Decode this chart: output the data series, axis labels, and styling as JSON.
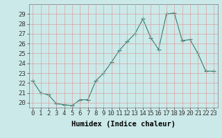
{
  "x": [
    0,
    1,
    2,
    3,
    4,
    5,
    6,
    7,
    8,
    9,
    10,
    11,
    12,
    13,
    14,
    15,
    16,
    17,
    18,
    19,
    20,
    21,
    22,
    23
  ],
  "y": [
    22.2,
    21.0,
    20.8,
    19.9,
    19.8,
    19.7,
    20.3,
    20.3,
    22.2,
    23.0,
    24.1,
    25.3,
    26.2,
    27.0,
    28.5,
    26.6,
    25.4,
    29.0,
    29.1,
    26.3,
    26.4,
    25.0,
    23.2,
    23.2
  ],
  "line_color": "#2e7d6e",
  "marker": "+",
  "marker_size": 4,
  "bg_color": "#cce9e9",
  "grid_color": "#d9a0a0",
  "xlabel": "Humidex (Indice chaleur)",
  "ylim": [
    19.5,
    30.0
  ],
  "xlim": [
    -0.5,
    23.5
  ],
  "yticks": [
    20,
    21,
    22,
    23,
    24,
    25,
    26,
    27,
    28,
    29
  ],
  "xticks": [
    0,
    1,
    2,
    3,
    4,
    5,
    6,
    7,
    8,
    9,
    10,
    11,
    12,
    13,
    14,
    15,
    16,
    17,
    18,
    19,
    20,
    21,
    22,
    23
  ],
  "xlabel_fontsize": 7.5,
  "tick_fontsize": 6.5
}
